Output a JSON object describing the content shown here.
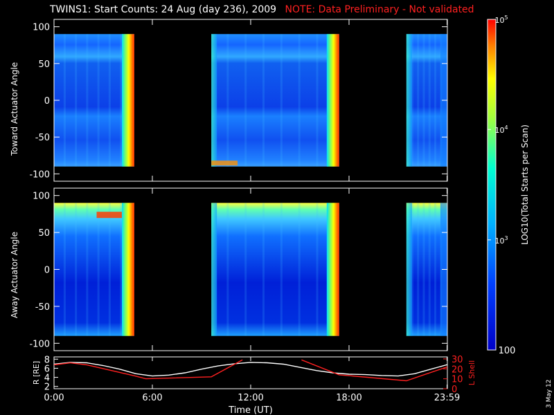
{
  "header": {
    "title": "TWINS1: Start Counts: 24 Aug (day 236), 2009",
    "note": "NOTE: Data Preliminary - Not validated"
  },
  "colorbar": {
    "label": "LOG10(Total Starts per Scan)",
    "ticks": [
      "10^5",
      "10^4",
      "10^3",
      "100"
    ]
  },
  "footer": {
    "date_stamp": "3 May 12"
  },
  "chart_data": [
    {
      "type": "heatmap",
      "ylabel": "Toward Actuator Angle",
      "yticks": [
        100,
        50,
        0,
        -50,
        -100
      ],
      "ylim": [
        -110,
        110
      ],
      "xlim": [
        0,
        24
      ],
      "data_blocks": [
        {
          "start": 0.0,
          "end": 4.9
        },
        {
          "start": 9.6,
          "end": 17.4
        },
        {
          "start": 21.5,
          "end": 24.0
        }
      ],
      "angle_range": [
        -90,
        90
      ]
    },
    {
      "type": "heatmap",
      "ylabel": "Away Actuator Angle",
      "yticks": [
        100,
        50,
        0,
        -50,
        -100
      ],
      "ylim": [
        -110,
        110
      ],
      "xlim": [
        0,
        24
      ],
      "data_blocks": [
        {
          "start": 0.0,
          "end": 4.9
        },
        {
          "start": 9.6,
          "end": 17.4
        },
        {
          "start": 21.5,
          "end": 24.0
        }
      ],
      "angle_range": [
        -90,
        90
      ]
    },
    {
      "type": "line",
      "ylabel": "R [RE]",
      "y2label": "L Shell",
      "xlabel": "Time (UT)",
      "xticks": [
        "0:00",
        "6:00",
        "12:00",
        "18:00",
        "23:59"
      ],
      "xtick_values": [
        0,
        6,
        12,
        18,
        23.98
      ],
      "yticks_left": [
        2,
        4,
        6,
        8
      ],
      "yticks_right": [
        0,
        10,
        20,
        30
      ],
      "ylim_left": [
        1.5,
        8.5
      ],
      "ylim_right": [
        0,
        32
      ],
      "series": [
        {
          "name": "R [RE]",
          "color": "#ffffff",
          "x": [
            0,
            1,
            2,
            3,
            4,
            5,
            6,
            7,
            8,
            9,
            10,
            11,
            12,
            13,
            14,
            15,
            16,
            17,
            18,
            19,
            20,
            21,
            22,
            23,
            24
          ],
          "y": [
            6.9,
            7.3,
            7.2,
            6.6,
            5.8,
            4.8,
            4.3,
            4.5,
            5.0,
            5.8,
            6.5,
            7.0,
            7.3,
            7.2,
            6.9,
            6.2,
            5.5,
            5.0,
            4.7,
            4.6,
            4.4,
            4.3,
            4.8,
            5.8,
            6.8
          ]
        },
        {
          "name": "L Shell",
          "color": "#ff2020",
          "x": [
            0,
            1,
            2,
            4.9,
            5.6,
            9.6,
            11.5,
            11.6,
            15.0,
            15.1,
            17.4,
            21.5,
            24
          ],
          "y": [
            24,
            26,
            24,
            13,
            10,
            12,
            29,
            null,
            null,
            29,
            14,
            8,
            22
          ]
        }
      ]
    }
  ]
}
